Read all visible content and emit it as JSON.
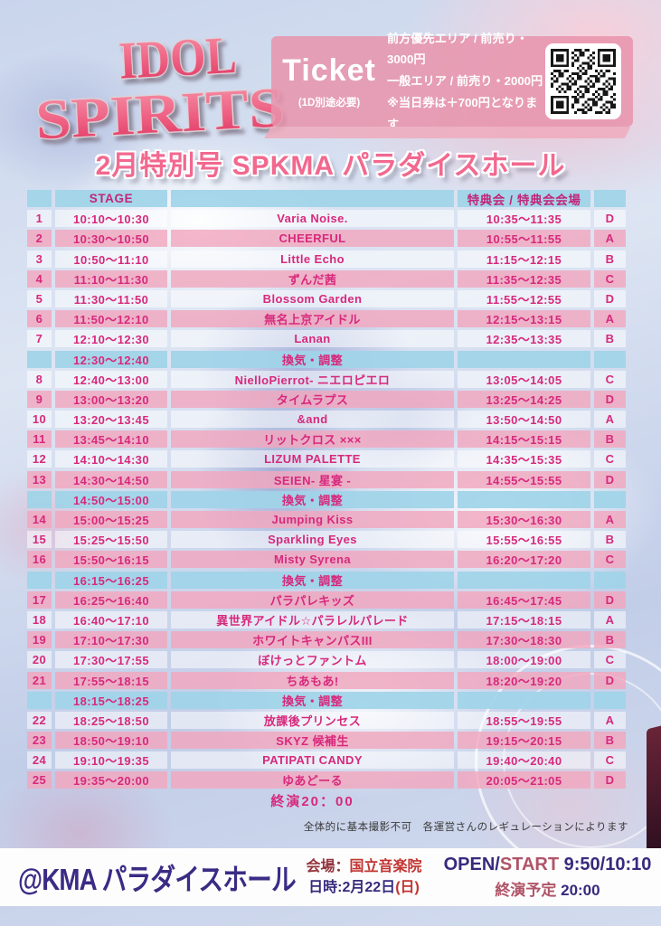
{
  "logo": {
    "line1": "IDOL",
    "line2": "SPIRITS"
  },
  "ticket": {
    "title": "Ticket",
    "note": "(1D別途必要)",
    "price_lines": [
      "前方優先エリア / 前売り・3000円",
      "一般エリア / 前売り・2000円",
      "※当日券は＋700円となります"
    ]
  },
  "icons": {
    "qr": "qr-code"
  },
  "subtitle": "2月特別号 SPKMA パラダイスホール",
  "table": {
    "headers": {
      "stage": "STAGE",
      "tokuten": "特典会 / 特典会会場"
    },
    "rows": [
      {
        "kind": "act",
        "no": "1",
        "stage": "10:10～10:30",
        "name": "Varia Noise.",
        "tokuten": "10:35～11:35",
        "venue": "D",
        "shade": "white"
      },
      {
        "kind": "act",
        "no": "2",
        "stage": "10:30～10:50",
        "name": "CHEERFUL",
        "tokuten": "10:55～11:55",
        "venue": "A",
        "shade": "pink"
      },
      {
        "kind": "act",
        "no": "3",
        "stage": "10:50～11:10",
        "name": "Little Echo",
        "tokuten": "11:15～12:15",
        "venue": "B",
        "shade": "white"
      },
      {
        "kind": "act",
        "no": "4",
        "stage": "11:10～11:30",
        "name": "ずんだ茜",
        "tokuten": "11:35～12:35",
        "venue": "C",
        "shade": "pink"
      },
      {
        "kind": "act",
        "no": "5",
        "stage": "11:30～11:50",
        "name": "Blossom Garden",
        "tokuten": "11:55～12:55",
        "venue": "D",
        "shade": "white"
      },
      {
        "kind": "act",
        "no": "6",
        "stage": "11:50～12:10",
        "name": "無名上京アイドル",
        "tokuten": "12:15～13:15",
        "venue": "A",
        "shade": "pink"
      },
      {
        "kind": "act",
        "no": "7",
        "stage": "12:10～12:30",
        "name": "Lanan",
        "tokuten": "12:35～13:35",
        "venue": "B",
        "shade": "white"
      },
      {
        "kind": "break",
        "no": "",
        "stage": "12:30～12:40",
        "name": "換気・調整",
        "tokuten": "",
        "venue": "",
        "shade": "blue"
      },
      {
        "kind": "act",
        "no": "8",
        "stage": "12:40～13:00",
        "name": "NielloPierrot- ニエロピエロ",
        "tokuten": "13:05～14:05",
        "venue": "C",
        "shade": "white"
      },
      {
        "kind": "act",
        "no": "9",
        "stage": "13:00～13:20",
        "name": "タイムラプス",
        "tokuten": "13:25～14:25",
        "venue": "D",
        "shade": "pink"
      },
      {
        "kind": "act",
        "no": "10",
        "stage": "13:20～13:45",
        "name": "&and",
        "tokuten": "13:50～14:50",
        "venue": "A",
        "shade": "white"
      },
      {
        "kind": "act",
        "no": "11",
        "stage": "13:45～14:10",
        "name": "リットクロス ×××",
        "tokuten": "14:15～15:15",
        "venue": "B",
        "shade": "pink"
      },
      {
        "kind": "act",
        "no": "12",
        "stage": "14:10～14:30",
        "name": "LIZUM PALETTE",
        "tokuten": "14:35～15:35",
        "venue": "C",
        "shade": "white"
      },
      {
        "kind": "act",
        "no": "13",
        "stage": "14:30～14:50",
        "name": "SEIEN- 星宴 -",
        "tokuten": "14:55～15:55",
        "venue": "D",
        "shade": "pink"
      },
      {
        "kind": "break",
        "no": "",
        "stage": "14:50～15:00",
        "name": "換気・調整",
        "tokuten": "",
        "venue": "",
        "shade": "blue"
      },
      {
        "kind": "act",
        "no": "14",
        "stage": "15:00～15:25",
        "name": "Jumping Kiss",
        "tokuten": "15:30～16:30",
        "venue": "A",
        "shade": "pink"
      },
      {
        "kind": "act",
        "no": "15",
        "stage": "15:25～15:50",
        "name": "Sparkling Eyes",
        "tokuten": "15:55～16:55",
        "venue": "B",
        "shade": "white"
      },
      {
        "kind": "act",
        "no": "16",
        "stage": "15:50～16:15",
        "name": "Misty Syrena",
        "tokuten": "16:20～17:20",
        "venue": "C",
        "shade": "pink"
      },
      {
        "kind": "break",
        "no": "",
        "stage": "16:15～16:25",
        "name": "換気・調整",
        "tokuten": "",
        "venue": "",
        "shade": "blue"
      },
      {
        "kind": "act",
        "no": "17",
        "stage": "16:25～16:40",
        "name": "パラパレキッズ",
        "tokuten": "16:45～17:45",
        "venue": "D",
        "shade": "pink"
      },
      {
        "kind": "act",
        "no": "18",
        "stage": "16:40～17:10",
        "name": "異世界アイドル☆パラレルパレード",
        "tokuten": "17:15～18:15",
        "venue": "A",
        "shade": "white"
      },
      {
        "kind": "act",
        "no": "19",
        "stage": "17:10～17:30",
        "name": "ホワイトキャンパスIII",
        "tokuten": "17:30～18:30",
        "venue": "B",
        "shade": "pink"
      },
      {
        "kind": "act",
        "no": "20",
        "stage": "17:30～17:55",
        "name": "ぼけっとファントム",
        "tokuten": "18:00～19:00",
        "venue": "C",
        "shade": "white"
      },
      {
        "kind": "act",
        "no": "21",
        "stage": "17:55～18:15",
        "name": "ちあもあ!",
        "tokuten": "18:20～19:20",
        "venue": "D",
        "shade": "pink"
      },
      {
        "kind": "break",
        "no": "",
        "stage": "18:15～18:25",
        "name": "換気・調整",
        "tokuten": "",
        "venue": "",
        "shade": "blue"
      },
      {
        "kind": "act",
        "no": "22",
        "stage": "18:25～18:50",
        "name": "放課後プリンセス",
        "tokuten": "18:55～19:55",
        "venue": "A",
        "shade": "white"
      },
      {
        "kind": "act",
        "no": "23",
        "stage": "18:50～19:10",
        "name": "SKYZ 候補生",
        "tokuten": "19:15～20:15",
        "venue": "B",
        "shade": "pink"
      },
      {
        "kind": "act",
        "no": "24",
        "stage": "19:10～19:35",
        "name": "PATIPATI CANDY",
        "tokuten": "19:40～20:40",
        "venue": "C",
        "shade": "white"
      },
      {
        "kind": "act",
        "no": "25",
        "stage": "19:35～20:00",
        "name": "ゆあどーる",
        "tokuten": "20:05～21:05",
        "venue": "D",
        "shade": "pink"
      },
      {
        "kind": "closing",
        "no": "",
        "stage": "",
        "name": "終演20：00",
        "tokuten": "",
        "venue": "",
        "shade": "none"
      }
    ]
  },
  "note": "全体的に基本撮影不可　各運営さんのレギュレーションによります",
  "footer": {
    "title": "@KMA パラダイスホール",
    "venue_label": "会場：",
    "venue_value": "国立音楽院",
    "date_label": "日時:",
    "date_value": "2月22日",
    "date_paren": "(日)",
    "open_prefix": "OPEN/",
    "open_start": "START",
    "open_times": " 9:50/10:10",
    "end_label": "終演予定",
    "end_value": " 20:00"
  },
  "colors": {
    "accent_magenta": "#d7297c",
    "row_pink": "#f2a7be",
    "row_blue": "#9fd4e8",
    "footer_navy": "#372a7d",
    "footer_red": "#c23430",
    "logo_pink": "#ee5f82"
  }
}
